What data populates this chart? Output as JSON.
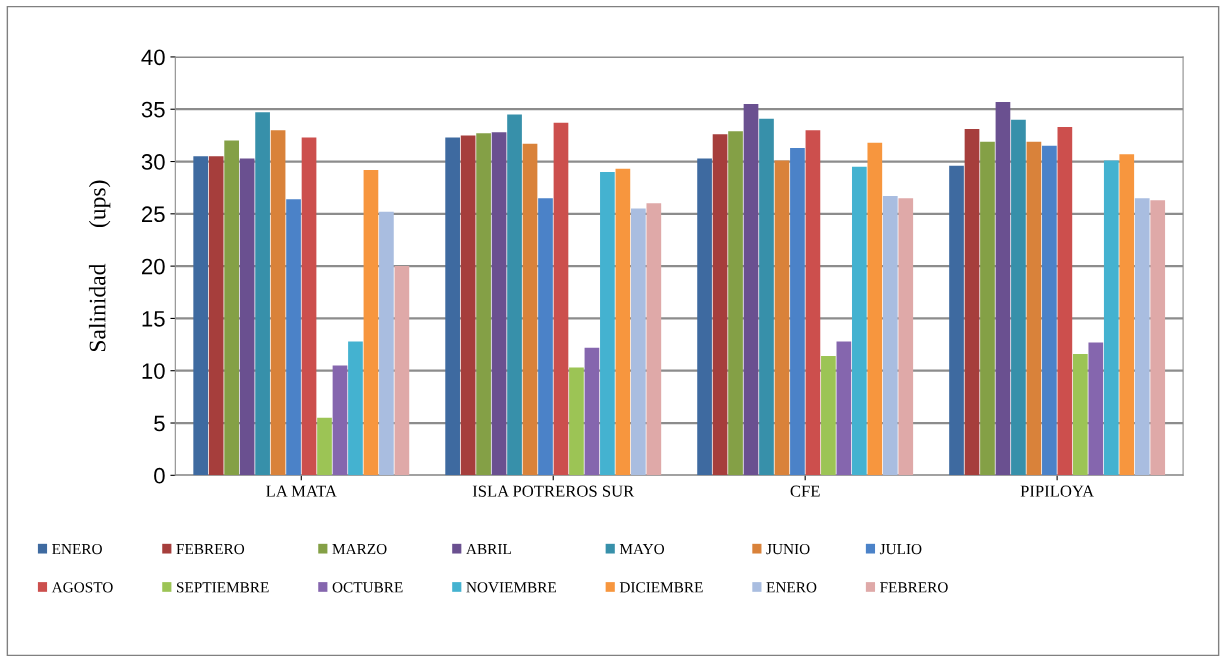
{
  "chart_data": {
    "type": "bar",
    "ylabel": "Salinidad      (ups)",
    "categories": [
      "LA MATA",
      "ISLA POTREROS SUR",
      "CFE",
      "PIPILOYA"
    ],
    "series": [
      {
        "name": "ENERO",
        "color": "#3e6aa0",
        "values": [
          30.5,
          32.3,
          30.3,
          29.6
        ]
      },
      {
        "name": "FEBRERO",
        "color": "#a63e3c",
        "values": [
          30.5,
          32.5,
          32.6,
          33.1
        ]
      },
      {
        "name": "MARZO",
        "color": "#84a046",
        "values": [
          32,
          32.7,
          32.9,
          31.9
        ]
      },
      {
        "name": "ABRIL",
        "color": "#6a5090",
        "values": [
          30.3,
          32.8,
          35.5,
          35.7
        ]
      },
      {
        "name": "MAYO",
        "color": "#3790aa",
        "values": [
          34.7,
          34.5,
          34.1,
          34
        ]
      },
      {
        "name": "JUNIO",
        "color": "#d9823a",
        "values": [
          33,
          31.7,
          30.1,
          31.9
        ]
      },
      {
        "name": "JULIO",
        "color": "#4b82c8",
        "values": [
          26.4,
          26.5,
          31.3,
          31.5
        ]
      },
      {
        "name": "AGOSTO",
        "color": "#cc4f4d",
        "values": [
          32.3,
          33.7,
          33,
          33.3
        ]
      },
      {
        "name": "SEPTIEMBRE",
        "color": "#9cc455",
        "values": [
          5.5,
          10.3,
          11.4,
          11.6
        ]
      },
      {
        "name": "OCTUBRE",
        "color": "#8566ae",
        "values": [
          10.5,
          12.2,
          12.8,
          12.7
        ]
      },
      {
        "name": "NOVIEMBRE",
        "color": "#44b2d0",
        "values": [
          12.8,
          29,
          29.5,
          30.1
        ]
      },
      {
        "name": "DICIEMBRE",
        "color": "#f7963e",
        "values": [
          29.2,
          29.3,
          31.8,
          30.7
        ]
      },
      {
        "name": "ENERO",
        "color": "#a9bde0",
        "values": [
          25.2,
          25.5,
          26.7,
          26.5
        ]
      },
      {
        "name": "FEBRERO",
        "color": "#dfa9a8",
        "values": [
          20,
          26,
          26.5,
          26.3
        ]
      }
    ],
    "ylim": [
      0,
      40
    ],
    "yticks": [
      0,
      5,
      10,
      15,
      20,
      25,
      30,
      35,
      40
    ],
    "grid": "y",
    "legend": "bottom"
  }
}
